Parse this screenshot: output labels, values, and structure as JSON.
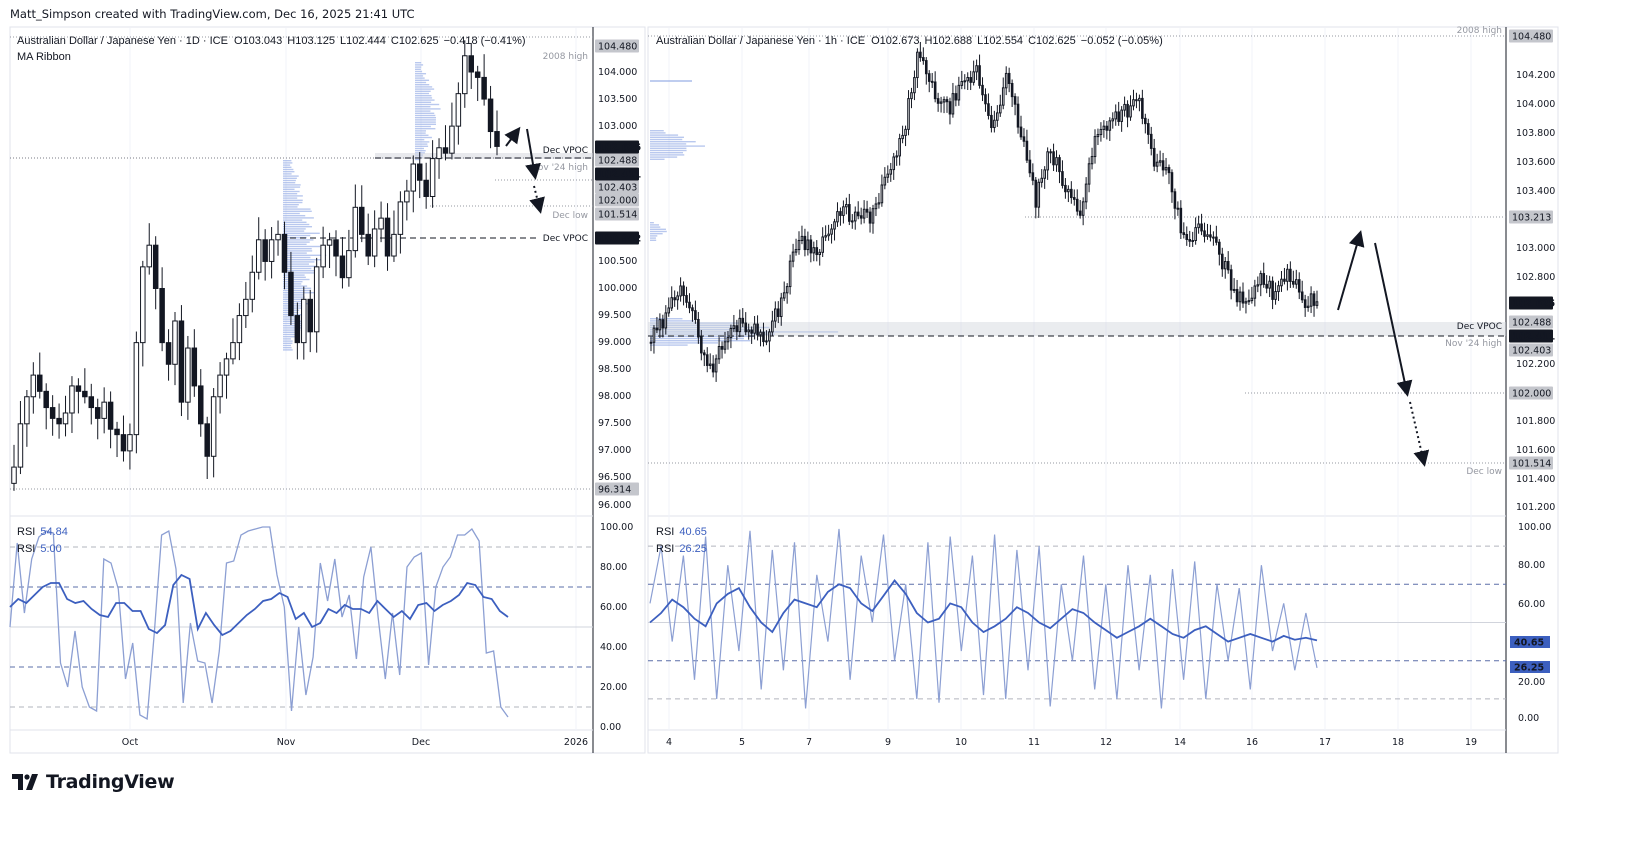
{
  "attribution": "Matt_Simpson created with TradingView.com, Dec 16, 2025 21:41 UTC",
  "brand": "TradingView",
  "colors": {
    "rsi_dark": "#3c5fbf",
    "rsi_light": "#8c9fd3",
    "volume_profile": "#7f9be0",
    "last_price_bg": "#131722",
    "level_bg": "#9598a1",
    "rsi_badge": "#3c5fbf"
  },
  "chart_data": [
    {
      "type": "candlestick",
      "panel": "left",
      "title": "Australian Dollar / Japanese Yen · 1D · ICE",
      "ohlc_text": {
        "open": "O103.043",
        "high": "H103.125",
        "low": "L102.444",
        "close": "C102.625",
        "change": "−0.418 (−0.41%)"
      },
      "indicator": "MA Ribbon",
      "ylim": [
        96.0,
        104.48
      ],
      "y_ticks": [
        "104.000",
        "103.500",
        "103.000",
        "100.500",
        "100.000",
        "99.500",
        "99.000",
        "98.500",
        "98.000",
        "97.500",
        "97.000",
        "96.500",
        "96.000"
      ],
      "x_ticks": [
        "Oct",
        "Nov",
        "Dec",
        "2026"
      ],
      "closes": [
        96.7,
        97.5,
        98.0,
        98.4,
        98.1,
        97.8,
        97.6,
        97.5,
        97.7,
        98.2,
        98.1,
        98.0,
        97.8,
        97.6,
        97.9,
        97.4,
        97.3,
        97.0,
        97.3,
        99.0,
        100.4,
        100.8,
        100.0,
        99.0,
        98.6,
        99.4,
        97.9,
        98.9,
        98.2,
        97.5,
        96.9,
        98.0,
        98.4,
        98.7,
        99.0,
        99.5,
        99.8,
        100.3,
        100.9,
        100.5,
        100.9,
        101.0,
        100.3,
        99.5,
        99.0,
        99.8,
        99.2,
        100.4,
        100.8,
        100.9,
        100.6,
        100.2,
        100.7,
        101.5,
        101.0,
        100.6,
        101.1,
        101.3,
        100.6,
        101.0,
        101.6,
        101.8,
        102.3,
        102.0,
        101.7,
        102.4,
        102.6,
        102.5,
        103.0,
        103.6,
        104.3,
        104.0,
        103.9,
        103.5,
        102.9,
        102.625
      ],
      "price_badges": [
        {
          "value": "104.480",
          "style": "level"
        },
        {
          "value": "102.625",
          "style": "last"
        },
        {
          "value": "102.488",
          "style": "level"
        },
        {
          "value": "102.411",
          "style": "last"
        },
        {
          "value": "102.403",
          "style": "level"
        },
        {
          "value": "102.000",
          "style": "level"
        },
        {
          "value": "101.514",
          "style": "level"
        },
        {
          "value": "100.942",
          "style": "last"
        },
        {
          "value": "96.314",
          "style": "level"
        }
      ],
      "levels": [
        {
          "label": "2008 high",
          "price": 104.48
        },
        {
          "label": "Dec VPOC",
          "price": 102.488
        },
        {
          "label": "Nov '24 high",
          "price": 102.403
        },
        {
          "label": "Dec low",
          "price": 101.514
        },
        {
          "label": "Dec VPOC",
          "price": 100.942
        }
      ],
      "rsi": {
        "label1": "RSI",
        "value1": "54.84",
        "label2": "RSI",
        "value2": "5.00",
        "y_ticks": [
          "100.00",
          "80.00",
          "60.00",
          "40.00",
          "20.00",
          "0.00"
        ],
        "series_slow": [
          60,
          64,
          62,
          66,
          70,
          72,
          72,
          64,
          62,
          63,
          59,
          56,
          55,
          62,
          62,
          58,
          58,
          49,
          47,
          51,
          71,
          76,
          74,
          49,
          57,
          51,
          46,
          48,
          52,
          56,
          59,
          63,
          64,
          67,
          65,
          54,
          57,
          50,
          52,
          59,
          57,
          61,
          59,
          59,
          57,
          63,
          59,
          55,
          58,
          54,
          61,
          62,
          58,
          61,
          63,
          66,
          72,
          71,
          65,
          64,
          58,
          55
        ],
        "series_fast": [
          50,
          92,
          57,
          84,
          95,
          98,
          97,
          32,
          20,
          48,
          20,
          10,
          8,
          84,
          82,
          69,
          24,
          42,
          6,
          4,
          47,
          96,
          98,
          79,
          12,
          52,
          33,
          32,
          12,
          38,
          82,
          83,
          96,
          98,
          99,
          100,
          100,
          76,
          60,
          8,
          50,
          16,
          35,
          82,
          63,
          84,
          55,
          66,
          34,
          75,
          90,
          55,
          24,
          57,
          26,
          80,
          85,
          87,
          31,
          70,
          80,
          85,
          96,
          96,
          99,
          93,
          37,
          38,
          10,
          5
        ]
      }
    },
    {
      "type": "candlestick",
      "panel": "right",
      "title": "Australian Dollar / Japanese Yen · 1h · ICE",
      "ohlc_text": {
        "open": "O102.673",
        "high": "H102.688",
        "low": "L102.554",
        "close": "C102.625",
        "change": "−0.052 (−0.05%)"
      },
      "ylim": [
        101.2,
        104.48
      ],
      "y_ticks": [
        "104.200",
        "104.000",
        "103.800",
        "103.600",
        "103.400",
        "103.000",
        "102.800",
        "102.200",
        "101.800",
        "101.600",
        "101.400",
        "101.200"
      ],
      "x_ticks": [
        "4",
        "5",
        "7",
        "9",
        "10",
        "11",
        "12",
        "14",
        "16",
        "17",
        "18",
        "19"
      ],
      "closes": [
        102.36,
        102.5,
        102.78,
        102.45,
        102.15,
        102.35,
        102.5,
        102.42,
        102.4,
        102.7,
        103.09,
        102.98,
        103.1,
        103.26,
        103.2,
        103.23,
        103.5,
        103.75,
        104.34,
        104.1,
        103.96,
        104.1,
        104.23,
        103.85,
        104.17,
        103.8,
        103.33,
        103.68,
        103.4,
        103.26,
        103.75,
        103.9,
        103.96,
        104.0,
        103.61,
        103.47,
        103.05,
        103.12,
        103.05,
        102.8,
        102.6,
        102.78,
        102.7,
        102.85,
        102.64,
        102.625
      ],
      "price_badges": [
        {
          "value": "104.480",
          "style": "level"
        },
        {
          "value": "103.213",
          "style": "level"
        },
        {
          "value": "102.625",
          "style": "last"
        },
        {
          "value": "102.488",
          "style": "level"
        },
        {
          "value": "102.411",
          "style": "last"
        },
        {
          "value": "102.403",
          "style": "level"
        },
        {
          "value": "102.000",
          "style": "level"
        },
        {
          "value": "101.514",
          "style": "level"
        }
      ],
      "levels": [
        {
          "label": "2008 high",
          "price": 104.48
        },
        {
          "label": "Dec VPOC",
          "price": 102.488
        },
        {
          "label": "Nov '24 high",
          "price": 102.403
        },
        {
          "label": "Dec low",
          "price": 101.514
        }
      ],
      "rsi": {
        "label1": "RSI",
        "value1": "40.65",
        "label2": "RSI",
        "value2": "26.25",
        "y_ticks": [
          "100.00",
          "80.00",
          "60.00",
          "20.00",
          "0.00"
        ],
        "series_slow": [
          50,
          55,
          62,
          58,
          52,
          48,
          60,
          65,
          68,
          58,
          50,
          45,
          55,
          62,
          60,
          58,
          66,
          70,
          68,
          60,
          56,
          64,
          72,
          65,
          55,
          50,
          52,
          60,
          58,
          50,
          45,
          48,
          52,
          58,
          55,
          50,
          47,
          52,
          57,
          55,
          50,
          46,
          42,
          45,
          48,
          52,
          48,
          44,
          42,
          46,
          48,
          44,
          40,
          42,
          44,
          42,
          40,
          43,
          41,
          42,
          40.65
        ],
        "series_fast": [
          60,
          90,
          40,
          85,
          20,
          95,
          10,
          80,
          35,
          98,
          15,
          88,
          25,
          92,
          5,
          75,
          40,
          99,
          20,
          85,
          50,
          96,
          30,
          70,
          10,
          92,
          8,
          95,
          35,
          85,
          12,
          96,
          10,
          88,
          25,
          90,
          6,
          70,
          30,
          85,
          15,
          70,
          10,
          80,
          25,
          75,
          5,
          78,
          20,
          82,
          10,
          70,
          30,
          68,
          15,
          80,
          35,
          60,
          25,
          55,
          26.25
        ]
      }
    }
  ]
}
